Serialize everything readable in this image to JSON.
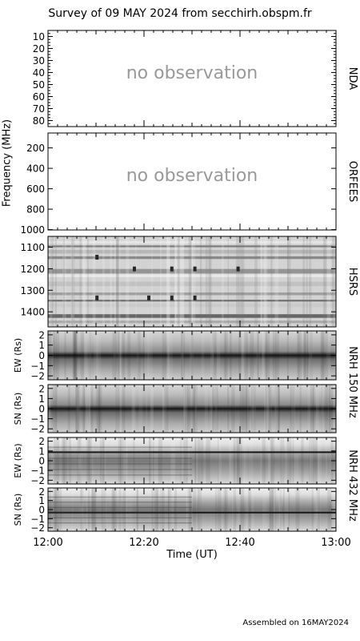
{
  "title": "Survey of 09 MAY 2024 from secchirh.obspm.fr",
  "footer": "Assembled on 16MAY2024",
  "chart_data": {
    "type": "heatmap",
    "xlabel": "Time (UT)",
    "x_ticks": [
      "12:00",
      "12:20",
      "12:40",
      "13:00"
    ],
    "xlim": [
      "12:00",
      "13:00"
    ],
    "frequency_axis_label": "Frequency (MHz)",
    "panels": [
      {
        "name": "NDA",
        "yticks": [
          "10",
          "20",
          "30",
          "40",
          "50",
          "60",
          "70",
          "80"
        ],
        "status": "no observation"
      },
      {
        "name": "ORFEES",
        "yticks": [
          "200",
          "400",
          "600",
          "800",
          "1000"
        ],
        "status": "no observation"
      },
      {
        "name": "HSRS",
        "yticks": [
          "1100",
          "1200",
          "1300",
          "1400"
        ],
        "status": ""
      },
      {
        "name": "NRH 150 MHz",
        "sub": [
          {
            "ylabel": "EW (Rs)",
            "yticks": [
              "2",
              "1",
              "0",
              "−1",
              "−2"
            ]
          },
          {
            "ylabel": "SN (Rs)",
            "yticks": [
              "2",
              "1",
              "0",
              "−1",
              "−2"
            ]
          }
        ]
      },
      {
        "name": "NRH 432 MHz",
        "sub": [
          {
            "ylabel": "EW (Rs)",
            "yticks": [
              "2",
              "1",
              "0",
              "−1",
              "−2"
            ]
          },
          {
            "ylabel": "SN (Rs)",
            "yticks": [
              "2",
              "1",
              "0",
              "−1",
              "−2"
            ]
          }
        ]
      }
    ],
    "right_labels": [
      "NDA",
      "ORFEES",
      "HSRS",
      "NRH 150 MHz",
      "NRH 432 MHz"
    ]
  }
}
